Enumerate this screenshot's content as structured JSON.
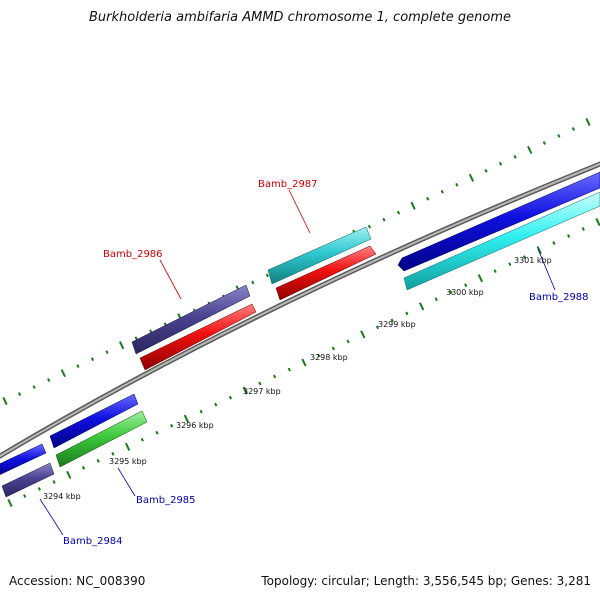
{
  "title": "Burkholderia ambifaria AMMD chromosome 1, complete genome",
  "footer": {
    "accession": "Accession: NC_008390",
    "summary": "Topology: circular; Length: 3,556,545 bp; Genes: 3,281"
  },
  "colors": {
    "backbone": "#8c8c8c",
    "ticks": "#1a7a1a",
    "label_red": "#cc0000",
    "label_blue": "#0000aa"
  },
  "scale": {
    "tick_labels": [
      "3294 kbp",
      "3295 kbp",
      "3296 kbp",
      "3297 kbp",
      "3298 kbp",
      "3299 kbp",
      "3300 kbp",
      "3301 kbp"
    ]
  },
  "genes": [
    {
      "name": "Bamb_2984"
    },
    {
      "name": "Bamb_2985"
    },
    {
      "name": "Bamb_2986"
    },
    {
      "name": "Bamb_2987"
    },
    {
      "name": "Bamb_2988"
    }
  ]
}
